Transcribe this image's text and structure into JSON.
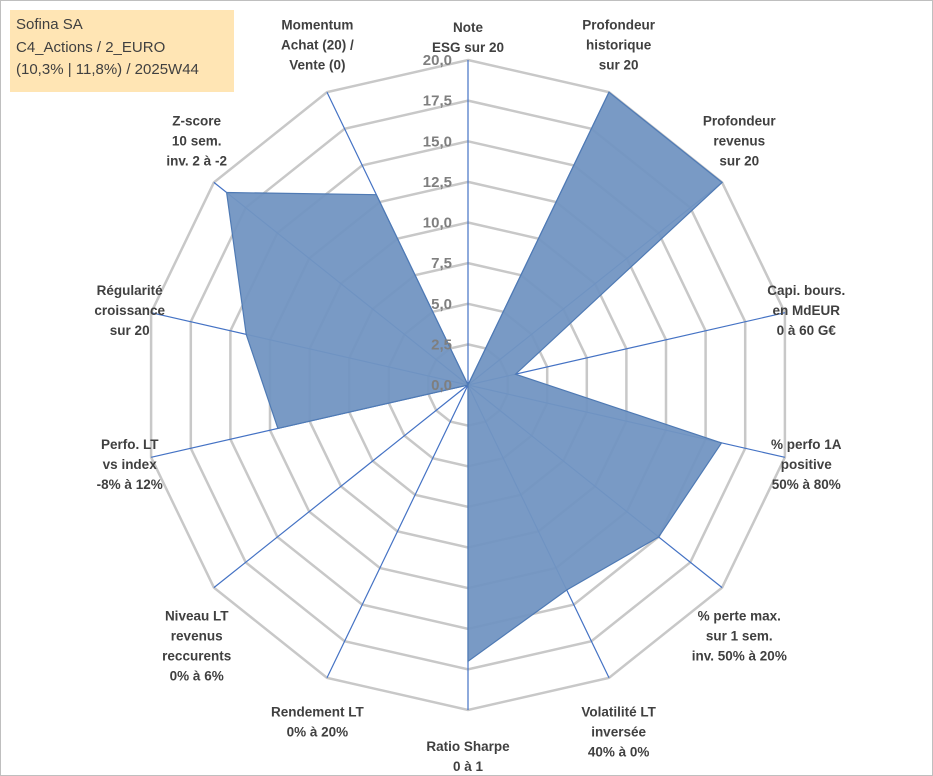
{
  "info": {
    "company": "Sofina SA",
    "category": "C4_Actions / 2_EURO",
    "period": "(10,3% | 11,8%) / 2025W44"
  },
  "chart_data": {
    "type": "radar",
    "title": "",
    "axes": [
      [
        "Note",
        "ESG sur 20"
      ],
      [
        "Profondeur",
        "historique",
        "sur 20"
      ],
      [
        "Profondeur",
        "revenus",
        "sur 20"
      ],
      [
        "Capi. bours.",
        "en MdEUR",
        "0 à 60 G€"
      ],
      [
        "% perfo 1A",
        "positive",
        "50% à 80%"
      ],
      [
        "% perte max.",
        "sur 1 sem.",
        "inv. 50% à 20%"
      ],
      [
        "Volatilité LT",
        "inversée",
        "40% à 0%"
      ],
      [
        "Ratio Sharpe",
        "0 à 1"
      ],
      [
        "Rendement LT",
        "0% à 20%"
      ],
      [
        "Niveau LT",
        "revenus",
        "reccurents",
        "0% à 6%"
      ],
      [
        "Perfo. LT",
        "vs index",
        "-8% à 12%"
      ],
      [
        "Régularité",
        "croissance",
        "sur 20"
      ],
      [
        "Z-score",
        "10 sem.",
        "inv. 2 à -2"
      ],
      [
        "Momentum",
        "Achat (20) /",
        "Vente (0)"
      ]
    ],
    "values": [
      0,
      20,
      20,
      3,
      16,
      15,
      14,
      17,
      0,
      0,
      12,
      14,
      19,
      13
    ],
    "rmin": 0,
    "rmax": 20,
    "ticks": [
      "0,0",
      "2,5",
      "5,0",
      "7,5",
      "10,0",
      "12,5",
      "15,0",
      "17,5",
      "20,0"
    ],
    "colors": {
      "fill": "#7295c2",
      "stroke": "#4f7ab4",
      "spoke": "#4472c4",
      "grid": "#c8c8c8"
    }
  }
}
